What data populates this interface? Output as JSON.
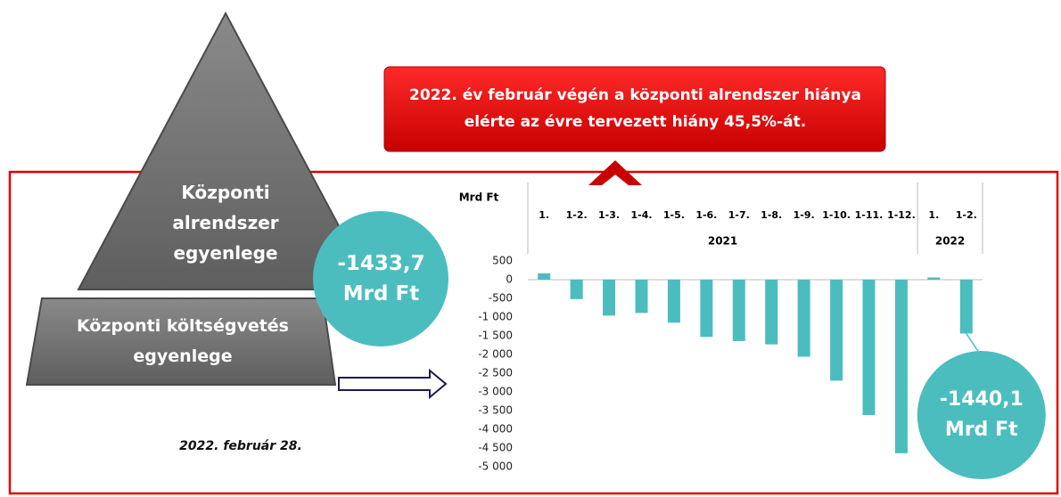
{
  "pyramid": {
    "top": "Központi alrendszer egyenlege",
    "bottom": "Központi költségvetés  egyenlege",
    "value": "-1433,7 Mrd Ft"
  },
  "banner": "2022. év február végén  a központi alrendszer hiánya elérte az évre tervezett hiány 45,5%-át.",
  "date": "2022. február 28.",
  "chart_data": {
    "type": "bar",
    "ylabel": "Mrd Ft",
    "categories": [
      "1.",
      "1-2.",
      "1-3.",
      "1-4.",
      "1-5.",
      "1-6.",
      "1-7.",
      "1-8.",
      "1-9.",
      "1-10.",
      "1-11.",
      "1-12.",
      "1.",
      "1-2."
    ],
    "groups": [
      {
        "label": "2021",
        "size": 12
      },
      {
        "label": "2022",
        "size": 2
      }
    ],
    "values": [
      170,
      -520,
      -960,
      -890,
      -1150,
      -1530,
      -1640,
      -1730,
      -2060,
      -2700,
      -3620,
      -4640,
      60,
      -1440.1
    ],
    "value_labels": [
      null,
      null,
      null,
      null,
      null,
      null,
      null,
      null,
      null,
      null,
      null,
      null,
      null,
      "-1440,1 Mrd Ft"
    ],
    "color": "#4bbdbf",
    "ylim": [
      -5000,
      500
    ],
    "yticks": [
      500,
      0,
      -500,
      {
        "value": -1000,
        "label": "-1 000"
      },
      {
        "value": -1500,
        "label": "-1 500"
      },
      {
        "value": -2000,
        "label": "-2 000"
      },
      {
        "value": -2500,
        "label": "-2 500"
      },
      {
        "value": -3000,
        "label": "-3 000"
      },
      {
        "value": -3500,
        "label": "-3 500"
      },
      {
        "value": -4000,
        "label": "-4 000"
      },
      {
        "value": -4500,
        "label": "-4 500"
      },
      {
        "value": -5000,
        "label": "-5 000"
      }
    ],
    "grid": false
  }
}
